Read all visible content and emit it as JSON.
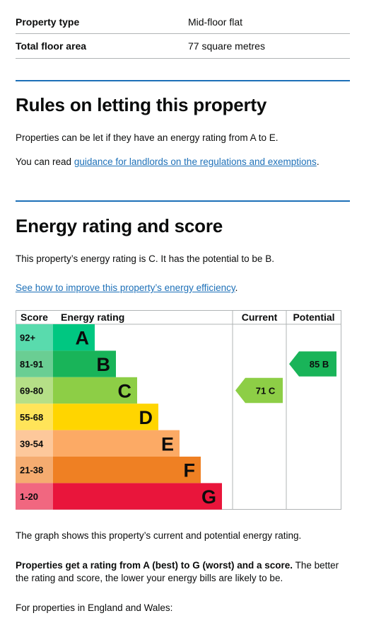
{
  "summary": {
    "rows": [
      {
        "label": "Property type",
        "value": "Mid-floor flat"
      },
      {
        "label": "Total floor area",
        "value": "77 square metres"
      }
    ]
  },
  "letting": {
    "heading": "Rules on letting this property",
    "text": "Properties can be let if they have an energy rating from A to E.",
    "read_prefix": "You can read ",
    "link": "guidance for landlords on the regulations and exemptions",
    "read_suffix": "."
  },
  "energy": {
    "heading": "Energy rating and score",
    "text": "This property’s energy rating is C. It has the potential to be B.",
    "improve_link": "See how to improve this property’s energy efficiency",
    "improve_suffix": ".",
    "graph_note": "The graph shows this property’s current and potential energy rating.",
    "bold_note": "Properties get a rating from A (best) to G (worst) and a score.",
    "note_rest": " The better the rating and score, the lower your energy bills are likely to be.",
    "england_wales": "For properties in England and Wales:"
  },
  "chart_data": {
    "type": "table",
    "headers": {
      "score": "Score",
      "rating": "Energy rating",
      "current": "Current",
      "potential": "Potential"
    },
    "bands": [
      {
        "score": "92+",
        "letter": "A",
        "color": "#00c781"
      },
      {
        "score": "81-91",
        "letter": "B",
        "color": "#19b459"
      },
      {
        "score": "69-80",
        "letter": "C",
        "color": "#8dce46"
      },
      {
        "score": "55-68",
        "letter": "D",
        "color": "#ffd500"
      },
      {
        "score": "39-54",
        "letter": "E",
        "color": "#fcaa65"
      },
      {
        "score": "21-38",
        "letter": "F",
        "color": "#ef8023"
      },
      {
        "score": "1-20",
        "letter": "G",
        "color": "#e9153b"
      }
    ],
    "current": {
      "score": 71,
      "letter": "C",
      "label": "71 C",
      "color": "#8dce46"
    },
    "potential": {
      "score": 85,
      "letter": "B",
      "label": "85 B",
      "color": "#19b459"
    }
  }
}
